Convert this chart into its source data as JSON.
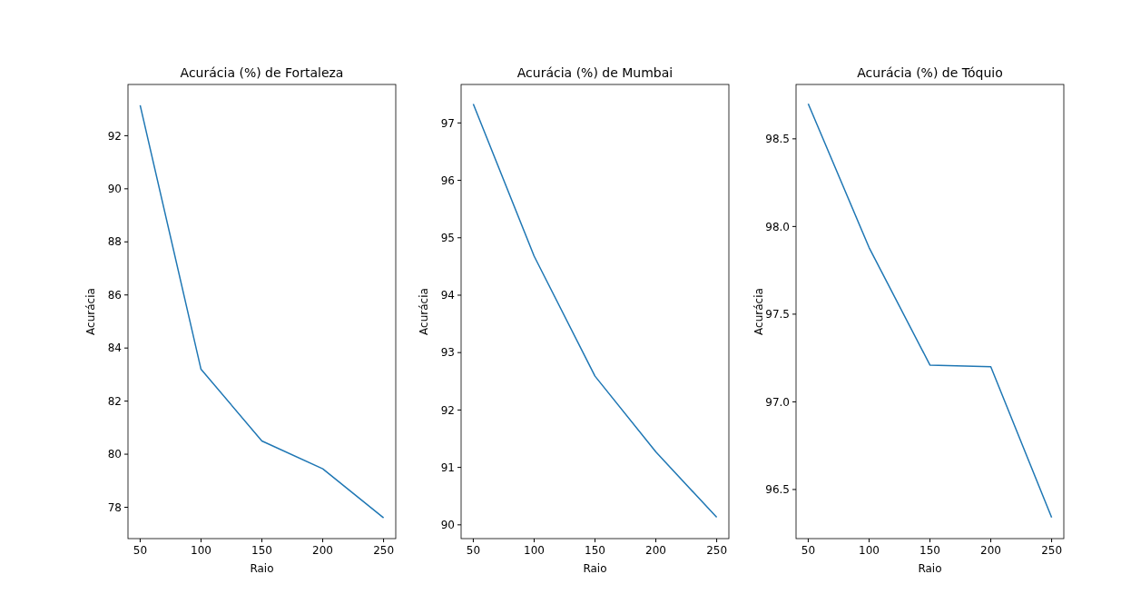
{
  "chart_data": [
    {
      "type": "line",
      "title": "Acurácia (%) de Fortaleza",
      "xlabel": "Raio",
      "ylabel": "Acurácia",
      "x": [
        50,
        100,
        150,
        200,
        250
      ],
      "series": [
        {
          "color": "#1f77b4",
          "values": [
            93.15,
            83.2,
            80.5,
            79.45,
            77.6
          ]
        }
      ],
      "xlim": [
        40,
        260
      ],
      "xticks": [
        50,
        100,
        150,
        200,
        250
      ],
      "ylim": [
        76.82,
        93.93
      ],
      "yticks": [
        78,
        80,
        82,
        84,
        86,
        88,
        90,
        92
      ]
    },
    {
      "type": "line",
      "title": "Acurácia (%) de Mumbai",
      "xlabel": "Raio",
      "ylabel": "Acurácia",
      "x": [
        50,
        100,
        150,
        200,
        250
      ],
      "series": [
        {
          "color": "#1f77b4",
          "values": [
            97.33,
            94.68,
            92.59,
            91.27,
            90.13
          ]
        }
      ],
      "xlim": [
        40,
        260
      ],
      "xticks": [
        50,
        100,
        150,
        200,
        250
      ],
      "ylim": [
        89.76,
        97.67
      ],
      "yticks": [
        90,
        91,
        92,
        93,
        94,
        95,
        96,
        97
      ]
    },
    {
      "type": "line",
      "title": "Acurácia (%) de Tóquio",
      "xlabel": "Raio",
      "ylabel": "Acurácia",
      "x": [
        50,
        100,
        150,
        200,
        250
      ],
      "series": [
        {
          "color": "#1f77b4",
          "values": [
            98.7,
            97.88,
            97.21,
            97.2,
            96.34
          ]
        }
      ],
      "xlim": [
        40,
        260
      ],
      "xticks": [
        50,
        100,
        150,
        200,
        250
      ],
      "ylim": [
        96.22,
        98.81
      ],
      "yticks": [
        96.5,
        {
          "value": 97,
          "label": "97.0"
        },
        97.5,
        {
          "value": 98,
          "label": "98.0"
        },
        98.5
      ]
    }
  ]
}
